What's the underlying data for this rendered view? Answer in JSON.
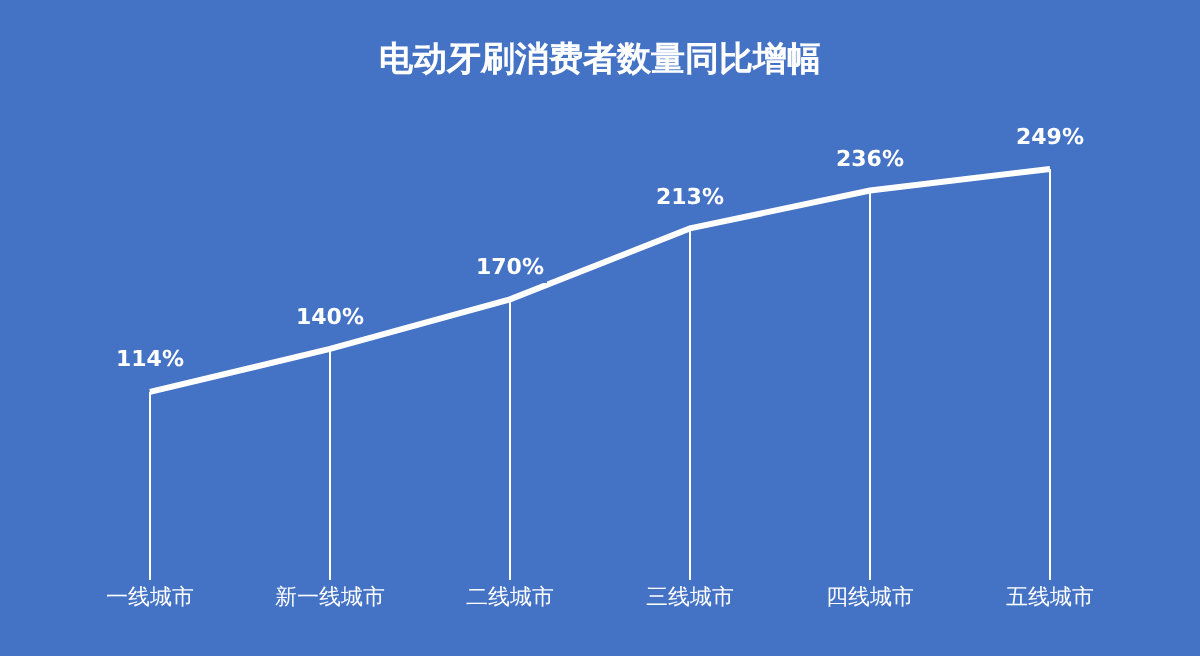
{
  "chart_data": {
    "type": "line",
    "title": "电动牙刷消费者数量同比增幅",
    "categories": [
      "一线城市",
      "新一线城市",
      "二线城市",
      "三线城市",
      "四线城市",
      "五线城市"
    ],
    "series": [
      {
        "color": "#ffffff",
        "values": [
          114,
          140,
          170,
          213,
          236,
          249
        ],
        "value_labels": [
          "114%",
          "140%",
          "170%",
          "213%",
          "236%",
          "249%"
        ]
      }
    ],
    "grid": "x",
    "legend": false,
    "marker": "none",
    "line_style": "solid",
    "tick_labels": "x"
  }
}
